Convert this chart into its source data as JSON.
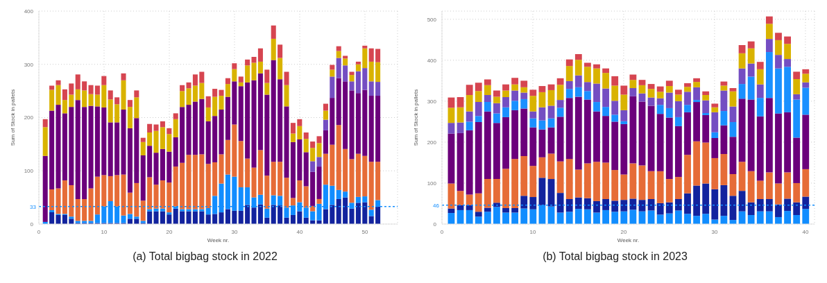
{
  "chart_data": [
    {
      "type": "bar",
      "title": "(a) Total bigbag stock in 2022",
      "xlabel": "Week nr.",
      "ylabel": "Sum of Stock in pallets",
      "stacked": true,
      "grid": true,
      "xlim": [
        0,
        55
      ],
      "xticks": [
        0,
        10,
        20,
        30,
        40,
        50
      ],
      "ylim": [
        0,
        400
      ],
      "yticks": [
        0,
        100,
        200,
        300,
        400
      ],
      "x": [
        1,
        2,
        3,
        4,
        5,
        6,
        7,
        8,
        9,
        10,
        11,
        12,
        13,
        14,
        15,
        16,
        17,
        18,
        19,
        20,
        21,
        22,
        23,
        24,
        25,
        26,
        27,
        28,
        29,
        30,
        31,
        32,
        33,
        34,
        35,
        36,
        37,
        38,
        39,
        40,
        41,
        42,
        43,
        44,
        45,
        46,
        47,
        48,
        49,
        50,
        51,
        52
      ],
      "series": [
        {
          "color": "#12239e",
          "values": [
            0,
            22,
            17,
            17,
            10,
            2,
            2,
            2,
            2,
            2,
            2,
            2,
            2,
            10,
            10,
            2,
            24,
            24,
            24,
            18,
            29,
            24,
            24,
            24,
            24,
            18,
            19,
            22,
            28,
            25,
            25,
            36,
            31,
            37,
            12,
            36,
            35,
            12,
            17,
            24,
            12,
            7,
            7,
            28,
            36,
            47,
            50,
            29,
            40,
            41,
            15,
            33
          ]
        },
        {
          "color": "#118dff",
          "values": [
            4,
            4,
            2,
            2,
            4,
            4,
            4,
            4,
            16,
            31,
            41,
            31,
            14,
            9,
            4,
            4,
            4,
            5,
            5,
            4,
            4,
            4,
            4,
            4,
            4,
            12,
            34,
            54,
            65,
            64,
            44,
            33,
            19,
            18,
            17,
            18,
            18,
            19,
            18,
            17,
            19,
            17,
            31,
            46,
            36,
            17,
            11,
            11,
            11,
            11,
            12,
            12
          ]
        },
        {
          "color": "#e66c37",
          "values": [
            0,
            39,
            48,
            63,
            59,
            41,
            41,
            61,
            71,
            59,
            47,
            59,
            77,
            40,
            63,
            38,
            60,
            45,
            53,
            56,
            75,
            87,
            102,
            102,
            103,
            83,
            63,
            55,
            65,
            98,
            87,
            54,
            56,
            84,
            62,
            63,
            64,
            56,
            14,
            41,
            40,
            10,
            9,
            58,
            77,
            122,
            80,
            82,
            81,
            76,
            90,
            72
          ]
        },
        {
          "color": "#6b007b",
          "values": [
            124,
            148,
            157,
            126,
            147,
            186,
            173,
            155,
            132,
            127,
            101,
            99,
            122,
            121,
            122,
            85,
            59,
            60,
            59,
            58,
            55,
            105,
            94,
            100,
            104,
            80,
            87,
            84,
            81,
            81,
            103,
            143,
            164,
            144,
            152,
            191,
            155,
            134,
            105,
            77,
            64,
            64,
            61,
            44,
            88,
            88,
            127,
            129,
            114,
            124,
            124,
            124
          ]
        },
        {
          "color": "#744ec2",
          "values": [
            0,
            0,
            0,
            0,
            0,
            0,
            0,
            0,
            0,
            0,
            0,
            0,
            0,
            0,
            0,
            0,
            0,
            0,
            0,
            0,
            0,
            0,
            0,
            0,
            0,
            0,
            0,
            0,
            0,
            0,
            0,
            0,
            0,
            0,
            0,
            0,
            0,
            0,
            0,
            0,
            0,
            20,
            18,
            20,
            40,
            38,
            30,
            17,
            41,
            41,
            27,
            26
          ]
        },
        {
          "color": "#d9b300",
          "values": [
            54,
            39,
            37,
            25,
            23,
            20,
            31,
            22,
            22,
            42,
            43,
            34,
            55,
            40,
            39,
            25,
            25,
            41,
            41,
            33,
            34,
            30,
            31,
            30,
            30,
            26,
            36,
            26,
            24,
            23,
            7,
            32,
            33,
            22,
            22,
            40,
            40,
            40,
            16,
            25,
            25,
            25,
            26,
            17,
            13,
            13,
            13,
            12,
            13,
            37,
            37,
            37
          ]
        },
        {
          "color": "#d64550",
          "values": [
            15,
            8,
            9,
            20,
            21,
            28,
            17,
            17,
            17,
            17,
            17,
            13,
            13,
            13,
            13,
            8,
            16,
            12,
            11,
            11,
            11,
            11,
            11,
            21,
            21,
            21,
            15,
            11,
            11,
            11,
            11,
            11,
            11,
            25,
            25,
            25,
            25,
            25,
            20,
            13,
            12,
            12,
            13,
            13,
            9,
            9,
            5,
            6,
            5,
            5,
            25,
            25
          ]
        }
      ],
      "ref_lines": [
        {
          "axis": "y",
          "value": 33,
          "label": "33",
          "color": "#118dff",
          "line_style": "dashed"
        }
      ]
    },
    {
      "type": "bar",
      "title": "(b) Total bigbag stock in 2023",
      "xlabel": "Week nr.",
      "ylabel": "Sum of Stock in pallets",
      "stacked": true,
      "grid": true,
      "xlim": [
        0,
        41
      ],
      "xticks": [
        0,
        10,
        20,
        30,
        40
      ],
      "ylim": [
        0,
        520
      ],
      "yticks": [
        0,
        100,
        200,
        300,
        400,
        500
      ],
      "x": [
        1,
        2,
        3,
        4,
        5,
        6,
        7,
        8,
        9,
        10,
        11,
        12,
        13,
        14,
        15,
        16,
        17,
        18,
        19,
        20,
        21,
        22,
        23,
        24,
        25,
        26,
        27,
        28,
        29,
        30,
        31,
        32,
        33,
        34,
        35,
        36,
        37,
        38,
        39,
        40
      ],
      "series": [
        {
          "color": "#118dff",
          "values": [
            27,
            34,
            34,
            18,
            30,
            42,
            28,
            28,
            38,
            36,
            46,
            43,
            28,
            30,
            37,
            36,
            28,
            34,
            30,
            31,
            35,
            31,
            33,
            23,
            26,
            33,
            25,
            20,
            25,
            11,
            20,
            10,
            31,
            22,
            31,
            31,
            17,
            32,
            22,
            37
          ]
        },
        {
          "color": "#12239e",
          "values": [
            11,
            12,
            12,
            12,
            10,
            10,
            11,
            11,
            31,
            30,
            67,
            67,
            48,
            31,
            28,
            27,
            28,
            27,
            27,
            28,
            27,
            28,
            28,
            28,
            27,
            28,
            50,
            74,
            74,
            74,
            75,
            59,
            50,
            31,
            30,
            30,
            31,
            30,
            31,
            30
          ]
        },
        {
          "color": "#e66c37",
          "values": [
            61,
            35,
            26,
            45,
            70,
            58,
            96,
            120,
            97,
            76,
            50,
            62,
            77,
            98,
            68,
            85,
            96,
            89,
            75,
            62,
            86,
            84,
            68,
            78,
            57,
            54,
            94,
            108,
            100,
            76,
            76,
            53,
            71,
            76,
            45,
            65,
            51,
            64,
            47,
            67
          ]
        },
        {
          "color": "#6b007b",
          "values": [
            122,
            141,
            157,
            174,
            165,
            137,
            126,
            119,
            116,
            94,
            68,
            64,
            109,
            149,
            178,
            156,
            123,
            114,
            118,
            123,
            164,
            156,
            160,
            140,
            150,
            124,
            104,
            96,
            67,
            49,
            70,
            91,
            154,
            175,
            157,
            182,
            171,
            147,
            111,
            133
          ]
        },
        {
          "color": "#1a90ff",
          "values": [
            0,
            0,
            21,
            15,
            23,
            23,
            24,
            23,
            23,
            22,
            22,
            22,
            22,
            22,
            23,
            21,
            23,
            22,
            17,
            7,
            0,
            0,
            0,
            22,
            23,
            22,
            18,
            5,
            5,
            14,
            35,
            36,
            36,
            56,
            45,
            112,
            110,
            111,
            93,
            66
          ]
        },
        {
          "color": "#744ec2",
          "values": [
            26,
            26,
            25,
            34,
            17,
            25,
            25,
            25,
            16,
            17,
            32,
            31,
            19,
            19,
            29,
            22,
            45,
            45,
            34,
            27,
            20,
            20,
            20,
            16,
            38,
            39,
            32,
            31,
            31,
            49,
            50,
            38,
            38,
            32,
            33,
            32,
            33,
            19,
            13,
            13
          ]
        },
        {
          "color": "#d9b300",
          "values": [
            37,
            37,
            40,
            27,
            24,
            16,
            16,
            15,
            13,
            38,
            37,
            38,
            37,
            37,
            38,
            37,
            37,
            38,
            37,
            38,
            20,
            20,
            21,
            16,
            16,
            16,
            12,
            13,
            13,
            12,
            12,
            37,
            37,
            37,
            37,
            37,
            36,
            37,
            37,
            21
          ]
        },
        {
          "color": "#d64550",
          "values": [
            25,
            25,
            25,
            20,
            14,
            15,
            15,
            16,
            16,
            15,
            15,
            14,
            16,
            16,
            14,
            10,
            10,
            11,
            23,
            22,
            13,
            13,
            12,
            13,
            13,
            12,
            9,
            9,
            9,
            9,
            10,
            8,
            20,
            17,
            18,
            18,
            18,
            18,
            18,
            11
          ]
        }
      ],
      "ref_lines": [
        {
          "axis": "y",
          "value": 46,
          "label": "46",
          "color": "#118dff",
          "line_style": "dashed"
        }
      ]
    }
  ]
}
